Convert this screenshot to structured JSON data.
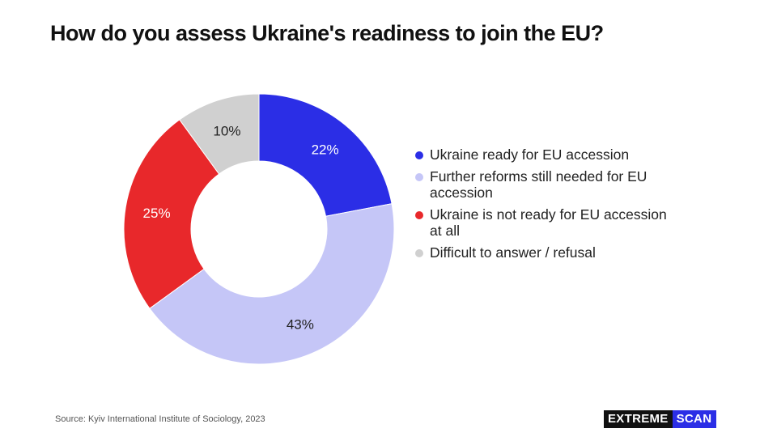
{
  "title": "How do you assess Ukraine's readiness to join the EU?",
  "source": "Source: Kyiv International Institute of Sociology, 2023",
  "brand": {
    "part1": "EXTREME",
    "part2": "SCAN"
  },
  "chart_data": {
    "type": "pie",
    "donut": true,
    "title": "How do you assess Ukraine's readiness to join the EU?",
    "legend_position": "right",
    "slices": [
      {
        "label": "Ukraine ready for EU accession",
        "value": 22,
        "display": "22%",
        "color": "#2b2ee6"
      },
      {
        "label": "Further reforms still needed for EU accession",
        "value": 43,
        "display": "43%",
        "color": "#c5c6f7"
      },
      {
        "label": "Ukraine is not ready for EU accession at all",
        "value": 25,
        "display": "25%",
        "color": "#e8282b"
      },
      {
        "label": "Difficult to answer / refusal",
        "value": 10,
        "display": "10%",
        "color": "#d0d0d0"
      }
    ]
  }
}
